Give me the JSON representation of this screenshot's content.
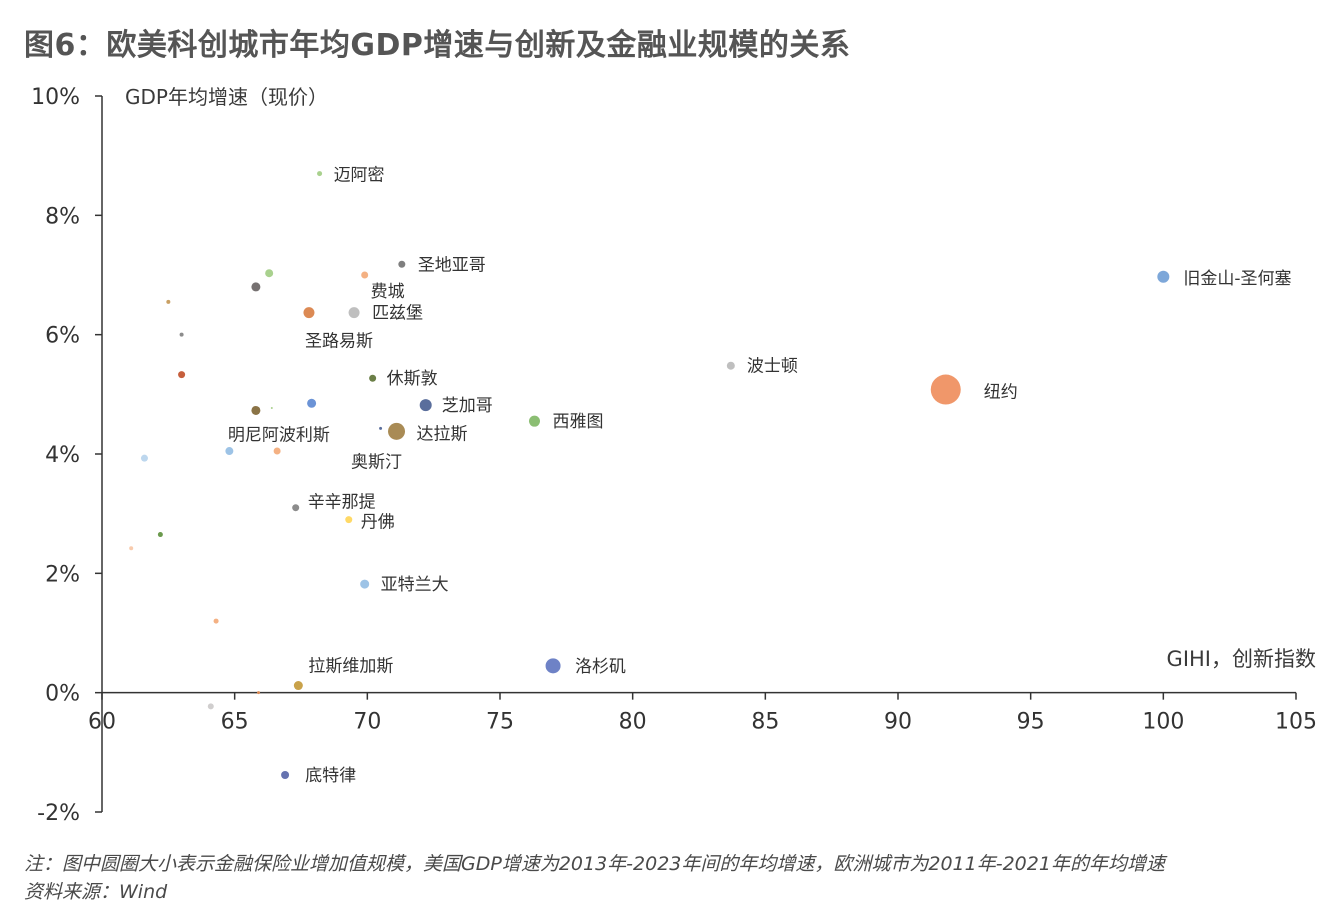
{
  "title": "图6：欧美科创城市年均GDP增速与创新及金融业规模的关系",
  "chart_data": {
    "type": "scatter",
    "ylabel": "GDP年均增速（现价）",
    "xlabel": "GIHI，创新指数",
    "xlim": [
      60,
      105
    ],
    "ylim": [
      -0.02,
      0.1
    ],
    "xticks": [
      "60",
      "65",
      "70",
      "75",
      "80",
      "85",
      "90",
      "95",
      "100",
      "105"
    ],
    "yticks": [
      "-2%",
      "0%",
      "2%",
      "4%",
      "6%",
      "8%",
      "10%"
    ],
    "size_meaning": "图中圆圈大小表示金融保险业增加值规模",
    "points": [
      {
        "label": "迈阿密",
        "x": 68.2,
        "y": 0.087,
        "size": 2.5,
        "color": "#a9d18e"
      },
      {
        "label": "圣地亚哥",
        "x": 71.3,
        "y": 0.0718,
        "size": 3.5,
        "color": "#7f7f7f"
      },
      {
        "label": "费城",
        "x": 69.9,
        "y": 0.07,
        "size": 3.5,
        "color": "#f4b183"
      },
      {
        "label": "",
        "x": 66.3,
        "y": 0.0703,
        "size": 4,
        "color": "#a9d18e"
      },
      {
        "label": "",
        "x": 65.8,
        "y": 0.068,
        "size": 4.5,
        "color": "#767171"
      },
      {
        "label": "",
        "x": 62.5,
        "y": 0.0655,
        "size": 2,
        "color": "#c9a063"
      },
      {
        "label": "圣路易斯",
        "x": 67.8,
        "y": 0.0637,
        "size": 5.5,
        "color": "#dc8a54"
      },
      {
        "label": "匹兹堡",
        "x": 69.5,
        "y": 0.0637,
        "size": 5.5,
        "color": "#bfbfbf"
      },
      {
        "label": "",
        "x": 63.0,
        "y": 0.06,
        "size": 2,
        "color": "#8c8c8c"
      },
      {
        "label": "旧金山-圣何塞",
        "x": 100.0,
        "y": 0.0697,
        "size": 6,
        "color": "#7da7d9"
      },
      {
        "label": "波士顿",
        "x": 83.7,
        "y": 0.0548,
        "size": 4,
        "color": "#bfbfbf"
      },
      {
        "label": "",
        "x": 63.0,
        "y": 0.0533,
        "size": 3.5,
        "color": "#c65f3d"
      },
      {
        "label": "休斯敦",
        "x": 70.2,
        "y": 0.0527,
        "size": 3.5,
        "color": "#6b7f47"
      },
      {
        "label": "纽约",
        "x": 91.8,
        "y": 0.0508,
        "size": 15,
        "color": "#f0976a"
      },
      {
        "label": "",
        "x": 67.9,
        "y": 0.0485,
        "size": 4.5,
        "color": "#6b93d6"
      },
      {
        "label": "芝加哥",
        "x": 72.2,
        "y": 0.0482,
        "size": 6,
        "color": "#5a6e9c"
      },
      {
        "label": "明尼阿波利斯",
        "x": 65.8,
        "y": 0.0473,
        "size": 4.5,
        "color": "#8a7346"
      },
      {
        "label": "",
        "x": 66.4,
        "y": 0.0477,
        "size": 1,
        "color": "#a9d18e"
      },
      {
        "label": "西雅图",
        "x": 76.3,
        "y": 0.0455,
        "size": 5.5,
        "color": "#8bbe73"
      },
      {
        "label": "",
        "x": 70.5,
        "y": 0.0443,
        "size": 1.5,
        "color": "#5a6e9c"
      },
      {
        "label": "达拉斯",
        "x": 71.1,
        "y": 0.0438,
        "size": 8.5,
        "color": "#a98b55"
      },
      {
        "label": "奥斯汀",
        "x": 71.1,
        "y": 0.0438,
        "size": 0,
        "color": "#a98b55"
      },
      {
        "label": "",
        "x": 61.6,
        "y": 0.0393,
        "size": 3.5,
        "color": "#bdd7ee"
      },
      {
        "label": "",
        "x": 64.8,
        "y": 0.0405,
        "size": 4,
        "color": "#9dc3e6"
      },
      {
        "label": "",
        "x": 66.6,
        "y": 0.0405,
        "size": 3.5,
        "color": "#f4b183"
      },
      {
        "label": "辛辛那提",
        "x": 67.3,
        "y": 0.031,
        "size": 3.5,
        "color": "#8c8c8c"
      },
      {
        "label": "丹佛",
        "x": 69.3,
        "y": 0.029,
        "size": 3.5,
        "color": "#ffd966"
      },
      {
        "label": "",
        "x": 62.2,
        "y": 0.0265,
        "size": 2.5,
        "color": "#6b9a4d"
      },
      {
        "label": "",
        "x": 61.1,
        "y": 0.0242,
        "size": 2,
        "color": "#f8cbad"
      },
      {
        "label": "亚特兰大",
        "x": 69.9,
        "y": 0.0182,
        "size": 4.5,
        "color": "#9dc3e6"
      },
      {
        "label": "",
        "x": 64.3,
        "y": 0.012,
        "size": 2.5,
        "color": "#f4b183"
      },
      {
        "label": "洛杉矶",
        "x": 77.0,
        "y": 0.0045,
        "size": 7.5,
        "color": "#6e82c6"
      },
      {
        "label": "拉斯维加斯",
        "x": 67.4,
        "y": 0.0012,
        "size": 4.5,
        "color": "#c9a24a"
      },
      {
        "label": "",
        "x": 65.9,
        "y": 0.0,
        "size": 1.5,
        "color": "#dc8a54"
      },
      {
        "label": "",
        "x": 64.1,
        "y": -0.0023,
        "size": 3,
        "color": "#d0cece"
      },
      {
        "label": "底特律",
        "x": 66.9,
        "y": -0.0138,
        "size": 4,
        "color": "#6673b0"
      }
    ]
  },
  "footnote": "注：图中圆圈大小表示金融保险业增加值规模，美国GDP增速为2013年-2023年间的年均增速，欧洲城市为2011年-2021年的年均增速",
  "source": "资料来源：Wind"
}
